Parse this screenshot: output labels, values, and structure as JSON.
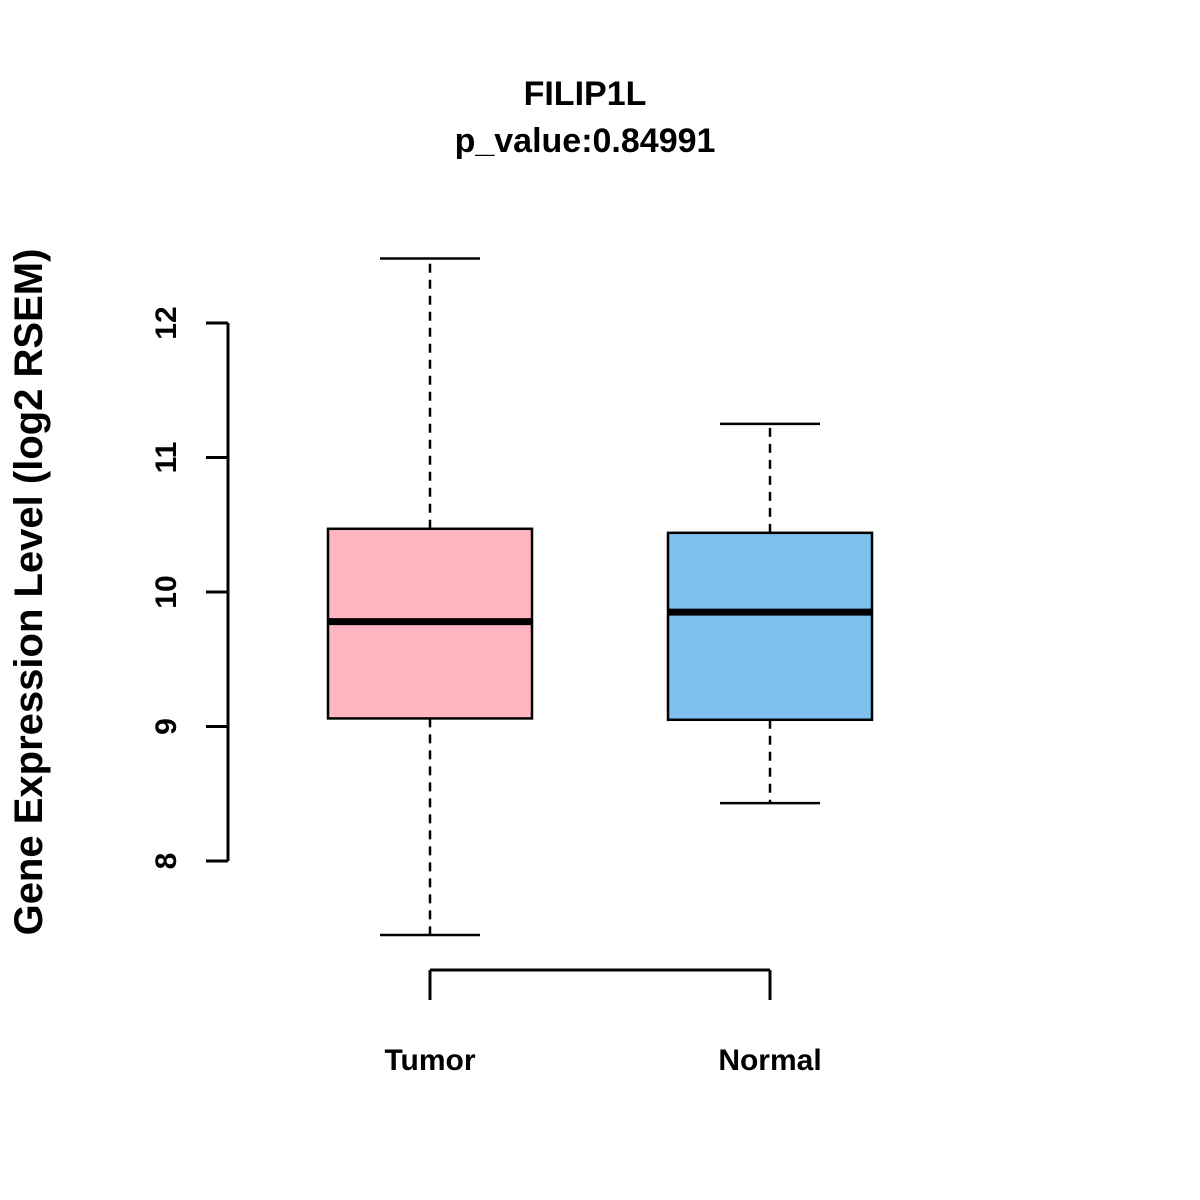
{
  "title": "FILIP1L",
  "subtitle": "p_value:0.84991",
  "chart_data": {
    "type": "boxplot",
    "title": "FILIP1L",
    "subtitle": "p_value:0.84991",
    "ylabel": "Gene Expression Level (log2 RSEM)",
    "xlabel": "",
    "categories": [
      "Tumor",
      "Normal"
    ],
    "yticks": [
      8,
      9,
      10,
      11,
      12
    ],
    "ylim": [
      7.2,
      12.6
    ],
    "grid": false,
    "legend": "none",
    "series": [
      {
        "name": "Tumor",
        "color": "#FFB6C1",
        "min": 7.45,
        "q1": 9.06,
        "median": 9.78,
        "q3": 10.47,
        "max": 12.48
      },
      {
        "name": "Normal",
        "color": "#7EC0EE",
        "min": 8.43,
        "q1": 9.05,
        "median": 9.85,
        "q3": 10.44,
        "max": 11.25
      }
    ],
    "colors": {
      "tumor_fill": "#FFB6C1",
      "normal_fill": "#7EC0EE",
      "stroke": "#000000"
    }
  }
}
